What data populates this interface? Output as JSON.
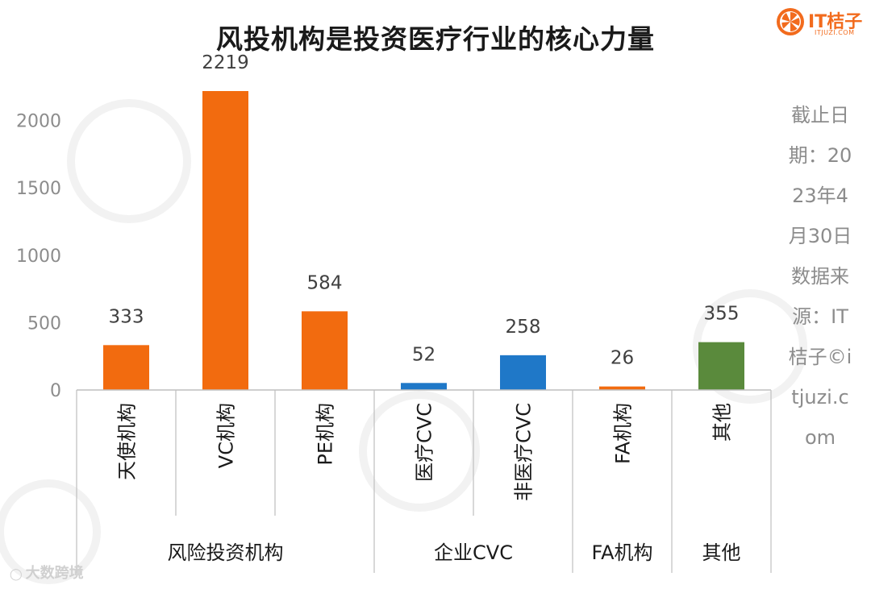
{
  "title": "风投机构是投资医疗行业的核心力量",
  "logo": {
    "brand": "IT桔子",
    "url": "ITJUZI.COM"
  },
  "side_note": "截止日期：2023年4月30日数据来源：IT桔子©itjuzi.com",
  "watermark_bottom": "大数跨境",
  "colors": {
    "orange": "#f26b0f",
    "blue": "#1f78c8",
    "green": "#5a8a3c",
    "axis": "#bfbfbf",
    "tick_text": "#8c8c8c"
  },
  "chart_data": {
    "type": "bar",
    "title": "风投机构是投资医疗行业的核心力量",
    "categories": [
      "天使机构",
      "VC机构",
      "PE机构",
      "医疗CVC",
      "非医疗CVC",
      "FA机构",
      "其他"
    ],
    "values": [
      333,
      2219,
      584,
      52,
      258,
      26,
      355
    ],
    "data_labels": [
      "333",
      "2219",
      "584",
      "52",
      "258",
      "26",
      "355"
    ],
    "bar_colors": [
      "#f26b0f",
      "#f26b0f",
      "#f26b0f",
      "#1f78c8",
      "#1f78c8",
      "#f26b0f",
      "#5a8a3c"
    ],
    "groups": [
      {
        "label": "风险投资机构",
        "categories": [
          "天使机构",
          "VC机构",
          "PE机构"
        ]
      },
      {
        "label": "企业CVC",
        "categories": [
          "医疗CVC",
          "非医疗CVC"
        ]
      },
      {
        "label": "FA机构",
        "categories": [
          "FA机构"
        ]
      },
      {
        "label": "其他",
        "categories": [
          "其他"
        ]
      }
    ],
    "y_ticks": [
      0,
      500,
      1000,
      1500,
      2000
    ],
    "y_tick_labels": [
      "0",
      "500",
      "1000",
      "1500",
      "2000"
    ],
    "ylim": [
      0,
      2219
    ],
    "xlabel": "",
    "ylabel": "",
    "grid": false,
    "legend": "none"
  }
}
